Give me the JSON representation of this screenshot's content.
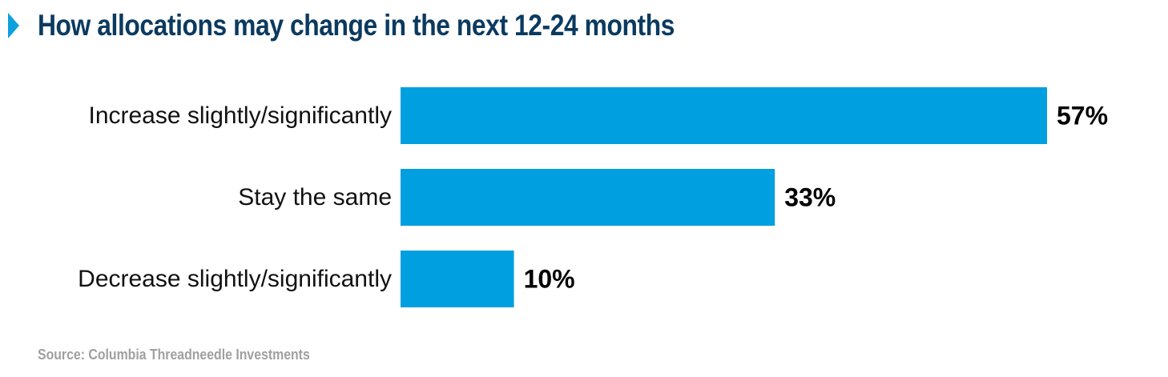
{
  "title": "How allocations may change in the next 12-24 months",
  "source": "Source: Columbia Threadneedle Investments",
  "colors": {
    "bar": "#009fdf",
    "title": "#0b3a5f",
    "marker": "#0ea0de",
    "label": "#111111",
    "value": "#000000",
    "source": "#a0a0a0"
  },
  "chart_data": {
    "type": "bar",
    "orientation": "horizontal",
    "title": "How allocations may change in the next 12-24 months",
    "categories": [
      "Increase slightly/significantly",
      "Stay the same",
      "Decrease slightly/significantly"
    ],
    "values": [
      57,
      33,
      10
    ],
    "value_labels": [
      "57%",
      "33%",
      "10%"
    ],
    "xlabel": "",
    "ylabel": "",
    "xlim": [
      0,
      57
    ],
    "grid": false,
    "legend": "none"
  }
}
